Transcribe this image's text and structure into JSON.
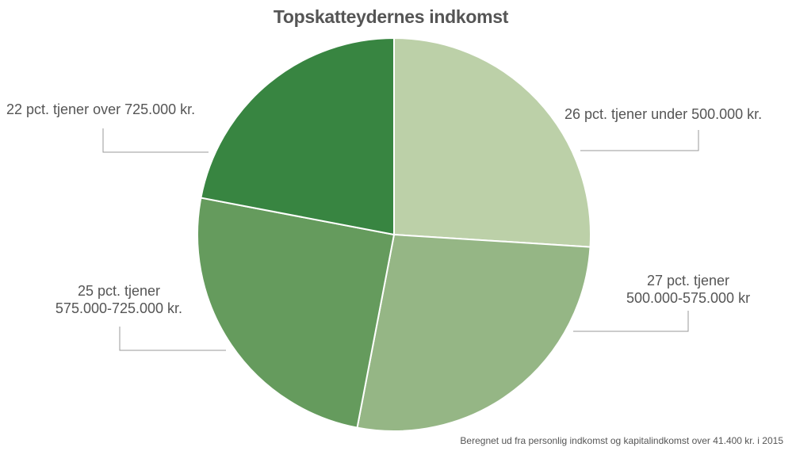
{
  "chart_data": {
    "type": "pie",
    "title": "Topskatteydernes indkomst",
    "slices": [
      {
        "label": "26 pct. tjener under 500.000 kr.",
        "value": 26,
        "color": "#bcd0a8"
      },
      {
        "label": "27 pct. tjener 500.000-575.000 kr",
        "value": 27,
        "color": "#95b685"
      },
      {
        "label": "25 pct. tjener 575.000-725.000 kr.",
        "value": 25,
        "color": "#659b5d"
      },
      {
        "label": "22 pct. tjener over 725.000 kr.",
        "value": 22,
        "color": "#388541"
      }
    ],
    "labels": {
      "s1": "26 pct. tjener  under  500.000 kr.",
      "s2_line1": "27 pct. tjener",
      "s2_line2": "500.000-575.000 kr",
      "s3_line1": "25 pct. tjener",
      "s3_line2": "575.000-725.000 kr.",
      "s4": "22 pct. tjener  over  725.000 kr."
    },
    "source": "Beregnet ud  fra personlig indkomst og kapitalindkomst  over 41.400 kr. i 2015",
    "start": "12 o'clock",
    "direction": "clockwise",
    "slice_border_color": "#ffffff",
    "leader_line_color": "#9a9a9a"
  }
}
